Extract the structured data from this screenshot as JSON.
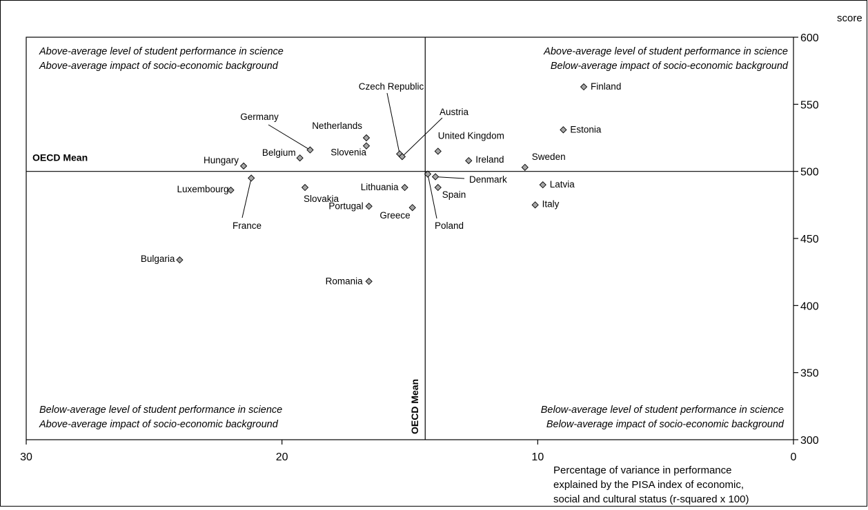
{
  "chart_data": {
    "type": "scatter",
    "xlabel_lines": [
      "Percentage of variance in performance",
      "explained by the PISA index of economic,",
      "social and cultural status (r-squared x 100)"
    ],
    "ylabel": "score",
    "xlim": [
      30,
      0
    ],
    "ylim": [
      300,
      600
    ],
    "x_ticks": [
      {
        "value": 30,
        "label": "30"
      },
      {
        "value": 20,
        "label": "20"
      },
      {
        "value": 10,
        "label": "10"
      },
      {
        "value": 0,
        "label": "0"
      }
    ],
    "y_ticks": [
      {
        "value": 600,
        "label": "600"
      },
      {
        "value": 550,
        "label": "550"
      },
      {
        "value": 500,
        "label": "500"
      },
      {
        "value": 450,
        "label": "450"
      },
      {
        "value": 400,
        "label": "400"
      },
      {
        "value": 350,
        "label": "350"
      },
      {
        "value": 300,
        "label": "300"
      }
    ],
    "mean_lines": {
      "x": 14.4,
      "y": 500,
      "horizontal_label": "OECD Mean",
      "vertical_label": "OECD Mean"
    },
    "quadrant_labels": {
      "top_left": [
        "Above-average level of student performance in science",
        "Above-average impact of socio-economic background"
      ],
      "top_right": [
        "Above-average level of student performance in science",
        "Below-average impact of socio-economic background"
      ],
      "bottom_left": [
        "Below-average level of student performance in science",
        "Above-average impact of socio-economic background"
      ],
      "bottom_right": [
        "Below-average level of student performance in science",
        "Below-average impact of socio-economic background"
      ]
    },
    "points": [
      {
        "label": "Finland",
        "x": 8.2,
        "y": 563
      },
      {
        "label": "Estonia",
        "x": 9.0,
        "y": 531
      },
      {
        "label": "Czech Republic",
        "x": 15.4,
        "y": 513
      },
      {
        "label": "Austria",
        "x": 15.3,
        "y": 511
      },
      {
        "label": "Germany",
        "x": 18.9,
        "y": 516
      },
      {
        "label": "Netherlands",
        "x": 16.7,
        "y": 525
      },
      {
        "label": "Slovenia",
        "x": 16.7,
        "y": 519
      },
      {
        "label": "United Kingdom",
        "x": 13.9,
        "y": 515
      },
      {
        "label": "Belgium",
        "x": 19.3,
        "y": 510
      },
      {
        "label": "Ireland",
        "x": 12.7,
        "y": 508
      },
      {
        "label": "Hungary",
        "x": 21.5,
        "y": 504
      },
      {
        "label": "Sweden",
        "x": 10.5,
        "y": 503
      },
      {
        "label": "Denmark",
        "x": 14.0,
        "y": 496
      },
      {
        "label": "Poland",
        "x": 14.3,
        "y": 498
      },
      {
        "label": "France",
        "x": 21.2,
        "y": 495
      },
      {
        "label": "Latvia",
        "x": 9.8,
        "y": 490
      },
      {
        "label": "Slovakia",
        "x": 19.1,
        "y": 488
      },
      {
        "label": "Lithuania",
        "x": 15.2,
        "y": 488
      },
      {
        "label": "Spain",
        "x": 13.9,
        "y": 488
      },
      {
        "label": "Luxembourg",
        "x": 22.0,
        "y": 486
      },
      {
        "label": "Italy",
        "x": 10.1,
        "y": 475
      },
      {
        "label": "Portugal",
        "x": 16.6,
        "y": 474
      },
      {
        "label": "Greece",
        "x": 14.9,
        "y": 473
      },
      {
        "label": "Bulgaria",
        "x": 24.0,
        "y": 434
      },
      {
        "label": "Romania",
        "x": 16.6,
        "y": 418
      }
    ]
  }
}
